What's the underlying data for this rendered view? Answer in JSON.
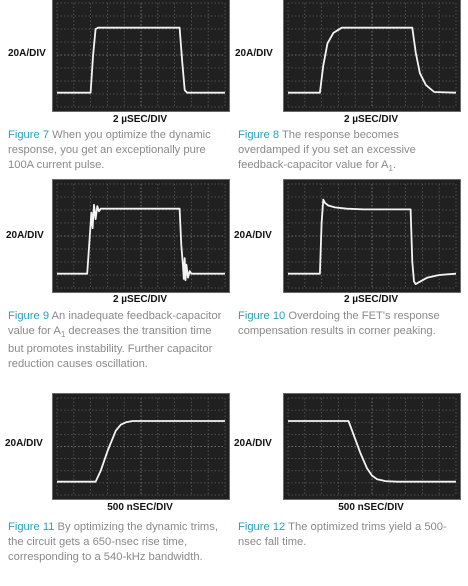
{
  "figures": [
    {
      "id": "fig7",
      "label": "Figure 7",
      "caption_pre": " When you optimize the dynamic response, you get an exceptionally pure 100A current pulse.",
      "caption_sub": "",
      "caption_post": ""
    },
    {
      "id": "fig8",
      "label": "Figure 8",
      "caption_pre": " The response becomes overdamped if you set an excessive feedback-capacitor value for A",
      "caption_sub": "1",
      "caption_post": "."
    },
    {
      "id": "fig9",
      "label": "Figure 9",
      "caption_pre": " An inadequate feedback-capacitor value for A",
      "caption_sub": "1",
      "caption_post": " decreases the transition time but promotes instability. Further capacitor reduction causes oscillation."
    },
    {
      "id": "fig10",
      "label": "Figure 10",
      "caption_pre": " Overdoing the FET's response compensation results in corner peaking.",
      "caption_sub": "",
      "caption_post": ""
    },
    {
      "id": "fig11",
      "label": "Figure 11",
      "caption_pre": " By optimizing the dynamic trims, the circuit gets a 650-nsec rise time, corresponding to a 540-kHz bandwidth.",
      "caption_sub": "",
      "caption_post": ""
    },
    {
      "id": "fig12",
      "label": "Figure 12",
      "caption_pre": " The optimized trims yield a 500-nsec fall time.",
      "caption_sub": "",
      "caption_post": ""
    }
  ],
  "chart_data": [
    {
      "type": "line",
      "id": "fig7",
      "ylabel": "20A/DIV",
      "xlabel": "2 µSEC/DIV",
      "xlim": [
        0,
        10
      ],
      "ylim": [
        0,
        8
      ],
      "grid": true,
      "x": [
        0,
        2.0,
        2.15,
        2.3,
        2.45,
        7.3,
        7.45,
        7.6,
        7.75,
        10
      ],
      "y": [
        1.1,
        1.1,
        4.0,
        6.0,
        6.1,
        6.1,
        3.5,
        1.3,
        1.1,
        1.1
      ]
    },
    {
      "type": "line",
      "id": "fig8",
      "ylabel": "20A/DIV",
      "xlabel": "2 µSEC/DIV",
      "xlim": [
        0,
        10
      ],
      "ylim": [
        0,
        8
      ],
      "grid": true,
      "x": [
        0,
        1.9,
        2.1,
        2.35,
        2.7,
        3.2,
        7.4,
        7.6,
        7.85,
        8.2,
        8.7,
        10
      ],
      "y": [
        1.1,
        1.1,
        3.2,
        4.9,
        5.7,
        6.1,
        6.1,
        4.2,
        2.6,
        1.7,
        1.15,
        1.1
      ]
    },
    {
      "type": "line",
      "id": "fig9",
      "ylabel": "20A/DIV",
      "xlabel": "2 µSEC/DIV",
      "xlim": [
        0,
        10
      ],
      "ylim": [
        0,
        8
      ],
      "grid": true,
      "x": [
        0,
        1.8,
        1.95,
        2.05,
        2.12,
        2.2,
        2.3,
        2.4,
        2.5,
        2.6,
        7.3,
        7.4,
        7.5,
        7.55,
        7.6,
        7.65,
        7.7,
        7.8,
        7.9,
        8.0,
        10
      ],
      "y": [
        1.1,
        1.1,
        4.0,
        5.8,
        4.6,
        6.4,
        5.3,
        6.3,
        5.9,
        6.1,
        6.1,
        3.3,
        1.7,
        0.7,
        2.3,
        0.6,
        1.8,
        0.8,
        1.3,
        1.1,
        1.1
      ]
    },
    {
      "type": "line",
      "id": "fig10",
      "ylabel": "20A/DIV",
      "xlabel": "2 µSEC/DIV",
      "xlim": [
        0,
        10
      ],
      "ylim": [
        0,
        8
      ],
      "grid": true,
      "x": [
        0,
        1.9,
        2.0,
        2.1,
        2.2,
        2.4,
        2.8,
        3.5,
        4.5,
        7.3,
        7.4,
        7.5,
        7.6,
        7.8,
        8.3,
        9.0,
        10
      ],
      "y": [
        1.1,
        1.1,
        5.0,
        6.8,
        6.55,
        6.35,
        6.2,
        6.1,
        6.05,
        6.05,
        2.0,
        0.5,
        0.3,
        0.45,
        0.8,
        1.0,
        1.1
      ]
    },
    {
      "type": "line",
      "id": "fig11",
      "ylabel": "20A/DIV",
      "xlabel": "500 nSEC/DIV",
      "xlim": [
        0,
        10
      ],
      "ylim": [
        0,
        8
      ],
      "grid": true,
      "x": [
        0,
        2.3,
        2.6,
        3.0,
        3.5,
        3.8,
        4.1,
        4.5,
        5.0,
        10
      ],
      "y": [
        1.1,
        1.1,
        2.0,
        3.6,
        5.3,
        5.8,
        6.0,
        6.1,
        6.1,
        6.1
      ]
    },
    {
      "type": "line",
      "id": "fig12",
      "ylabel": "20A/DIV",
      "xlabel": "500 nSEC/DIV",
      "xlim": [
        0,
        10
      ],
      "ylim": [
        0,
        8
      ],
      "grid": true,
      "x": [
        0,
        3.6,
        3.9,
        4.3,
        4.7,
        5.0,
        5.3,
        5.8,
        6.5,
        10
      ],
      "y": [
        6.1,
        6.1,
        5.0,
        3.5,
        2.2,
        1.6,
        1.3,
        1.15,
        1.1,
        1.1
      ]
    }
  ]
}
